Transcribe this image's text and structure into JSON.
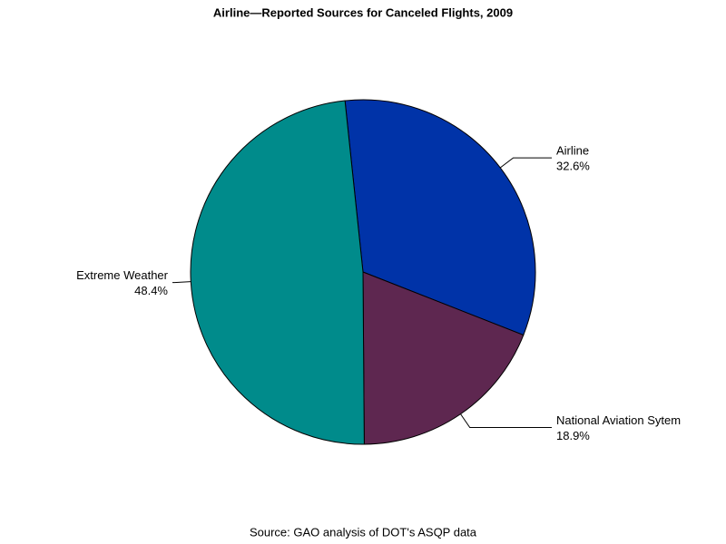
{
  "chart_data": {
    "type": "pie",
    "title": "Airline—Reported Sources for Canceled Flights, 2009",
    "source": "Source: GAO analysis of DOT's ASQP data",
    "categories": [
      "Airline",
      "National Aviation Sytem",
      "Extreme Weather"
    ],
    "values": [
      32.6,
      18.9,
      48.4
    ],
    "value_labels": [
      "32.6%",
      "18.9%",
      "48.4%"
    ],
    "colors": [
      "#0033a8",
      "#5e2750",
      "#008b8b"
    ]
  }
}
